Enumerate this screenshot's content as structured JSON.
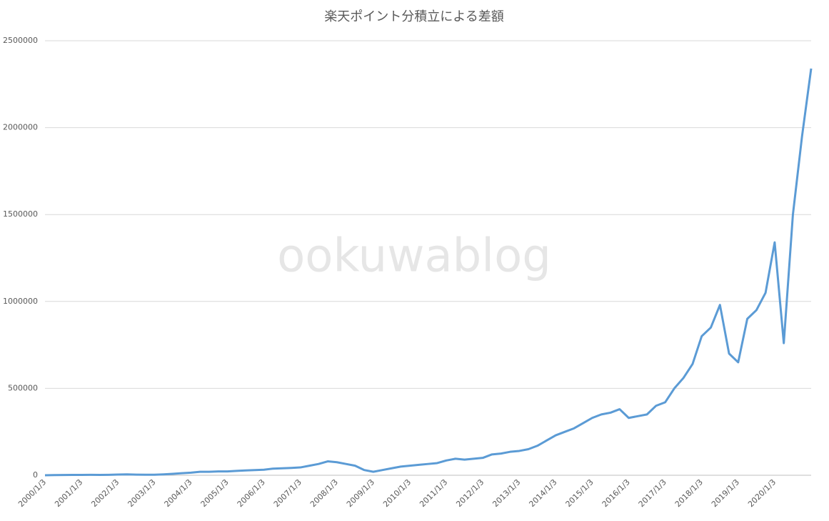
{
  "chart_data": {
    "type": "line",
    "title": "楽天ポイント分積立による差額",
    "watermark": "ookuwablog",
    "categories": [
      "2000/1/3",
      null,
      null,
      null,
      "2001/1/3",
      null,
      null,
      null,
      "2002/1/3",
      null,
      null,
      null,
      "2003/1/3",
      null,
      null,
      null,
      "2004/1/3",
      null,
      null,
      null,
      "2005/1/3",
      null,
      null,
      null,
      "2006/1/3",
      null,
      null,
      null,
      "2007/1/3",
      null,
      null,
      null,
      "2008/1/3",
      null,
      null,
      null,
      "2009/1/3",
      null,
      null,
      null,
      "2010/1/3",
      null,
      null,
      null,
      "2011/1/3",
      null,
      null,
      null,
      "2012/1/3",
      null,
      null,
      null,
      "2013/1/3",
      null,
      null,
      null,
      "2014/1/3",
      null,
      null,
      null,
      "2015/1/3",
      null,
      null,
      null,
      "2016/1/3",
      null,
      null,
      null,
      "2017/1/3",
      null,
      null,
      null,
      "2018/1/3",
      null,
      null,
      null,
      "2019/1/3",
      null,
      null,
      null,
      "2020/1/3",
      null,
      null,
      null,
      null
    ],
    "series": [
      {
        "color": "#5b9bd5",
        "values": [
          0,
          1000,
          1500,
          2000,
          2000,
          2500,
          2000,
          2500,
          4000,
          5000,
          3500,
          3000,
          3000,
          5000,
          8000,
          12000,
          15000,
          20000,
          20000,
          22000,
          22000,
          25000,
          28000,
          30000,
          32000,
          38000,
          40000,
          42000,
          45000,
          55000,
          65000,
          80000,
          75000,
          65000,
          55000,
          30000,
          20000,
          30000,
          40000,
          50000,
          55000,
          60000,
          65000,
          70000,
          85000,
          95000,
          90000,
          95000,
          100000,
          120000,
          125000,
          135000,
          140000,
          150000,
          170000,
          200000,
          230000,
          250000,
          270000,
          300000,
          330000,
          350000,
          360000,
          380000,
          330000,
          340000,
          350000,
          400000,
          420000,
          500000,
          560000,
          640000,
          800000,
          850000,
          980000,
          700000,
          650000,
          900000,
          950000,
          1050000,
          1340000,
          760000,
          1500000,
          1950000,
          2340000
        ]
      }
    ],
    "ylim": [
      0,
      2500000
    ],
    "yticks": [
      0,
      500000,
      1000000,
      1500000,
      2000000,
      2500000
    ],
    "grid": true
  }
}
